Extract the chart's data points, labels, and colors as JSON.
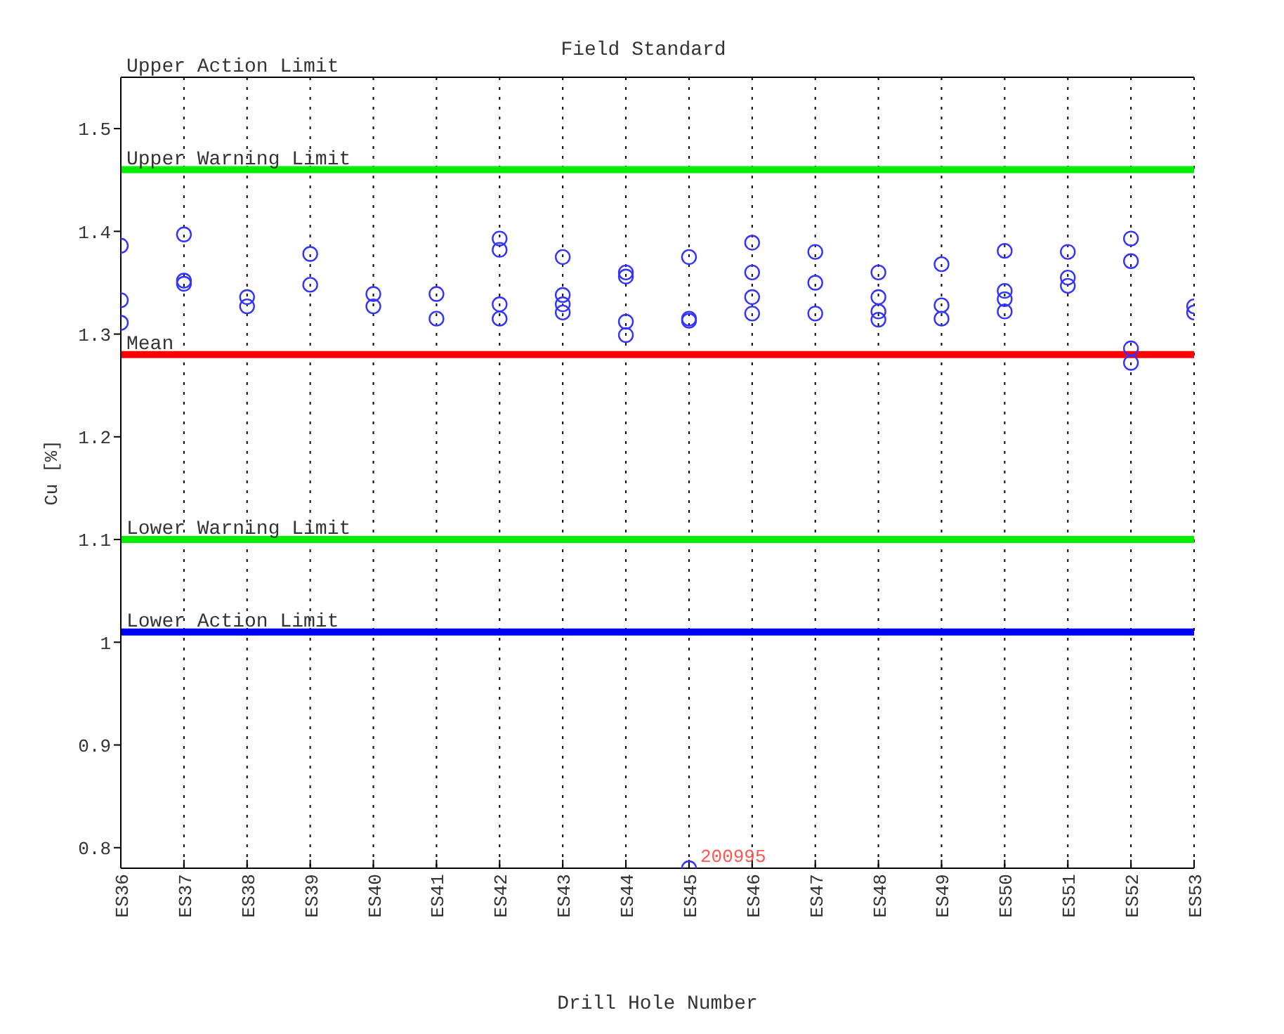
{
  "chart_data": {
    "type": "scatter",
    "title": "Field Standard",
    "xlabel": "Drill Hole Number",
    "ylabel": "Cu [%]",
    "categories": [
      "ES36",
      "ES37",
      "ES38",
      "ES39",
      "ES40",
      "ES41",
      "ES42",
      "ES43",
      "ES44",
      "ES45",
      "ES46",
      "ES47",
      "ES48",
      "ES49",
      "ES50",
      "ES51",
      "ES52",
      "ES53"
    ],
    "series": [
      {
        "color": "#3333ff",
        "x": [
          "ES36",
          "ES36",
          "ES36",
          "ES37",
          "ES37",
          "ES37",
          "ES38",
          "ES38",
          "ES39",
          "ES39",
          "ES40",
          "ES40",
          "ES41",
          "ES41",
          "ES42",
          "ES42",
          "ES42",
          "ES42",
          "ES43",
          "ES43",
          "ES43",
          "ES43",
          "ES44",
          "ES44",
          "ES44",
          "ES44",
          "ES45",
          "ES45",
          "ES45",
          "ES45",
          "ES46",
          "ES46",
          "ES46",
          "ES46",
          "ES47",
          "ES47",
          "ES47",
          "ES48",
          "ES48",
          "ES48",
          "ES48",
          "ES49",
          "ES49",
          "ES49",
          "ES50",
          "ES50",
          "ES50",
          "ES50",
          "ES51",
          "ES51",
          "ES51",
          "ES52",
          "ES52",
          "ES52",
          "ES52",
          "ES53",
          "ES53"
        ],
        "values": [
          1.386,
          1.333,
          1.311,
          1.397,
          1.352,
          1.349,
          1.336,
          1.327,
          1.378,
          1.348,
          1.339,
          1.327,
          1.339,
          1.315,
          1.393,
          1.382,
          1.329,
          1.315,
          1.375,
          1.338,
          1.329,
          1.321,
          1.36,
          1.356,
          1.312,
          1.299,
          1.375,
          1.315,
          1.313,
          0.78,
          1.389,
          1.36,
          1.336,
          1.32,
          1.38,
          1.35,
          1.32,
          1.36,
          1.336,
          1.322,
          1.314,
          1.368,
          1.328,
          1.315,
          1.381,
          1.342,
          1.334,
          1.322,
          1.38,
          1.355,
          1.347,
          1.393,
          1.371,
          1.286,
          1.272,
          1.327,
          1.321
        ]
      }
    ],
    "marker": "circle",
    "grid": "x",
    "ylim": [
      0.78,
      1.55
    ],
    "yticks": [
      0.8,
      0.9,
      1,
      1.1,
      1.2,
      1.3,
      1.4,
      1.5
    ],
    "ref_lines": [
      {
        "axis": "y",
        "value": 1.55,
        "label": "Upper Action Limit",
        "color": "#000000"
      },
      {
        "axis": "y",
        "value": 1.46,
        "label": "Upper Warning Limit",
        "color": "#00ee00"
      },
      {
        "axis": "y",
        "value": 1.28,
        "label": "Mean",
        "color": "#ff0000"
      },
      {
        "axis": "y",
        "value": 1.1,
        "label": "Lower Warning Limit",
        "color": "#00ee00"
      },
      {
        "axis": "y",
        "value": 1.01,
        "label": "Lower Action Limit",
        "color": "#0000ff"
      }
    ],
    "annotations": [
      {
        "text": "200995",
        "x": "ES45",
        "y": 0.78
      }
    ]
  }
}
